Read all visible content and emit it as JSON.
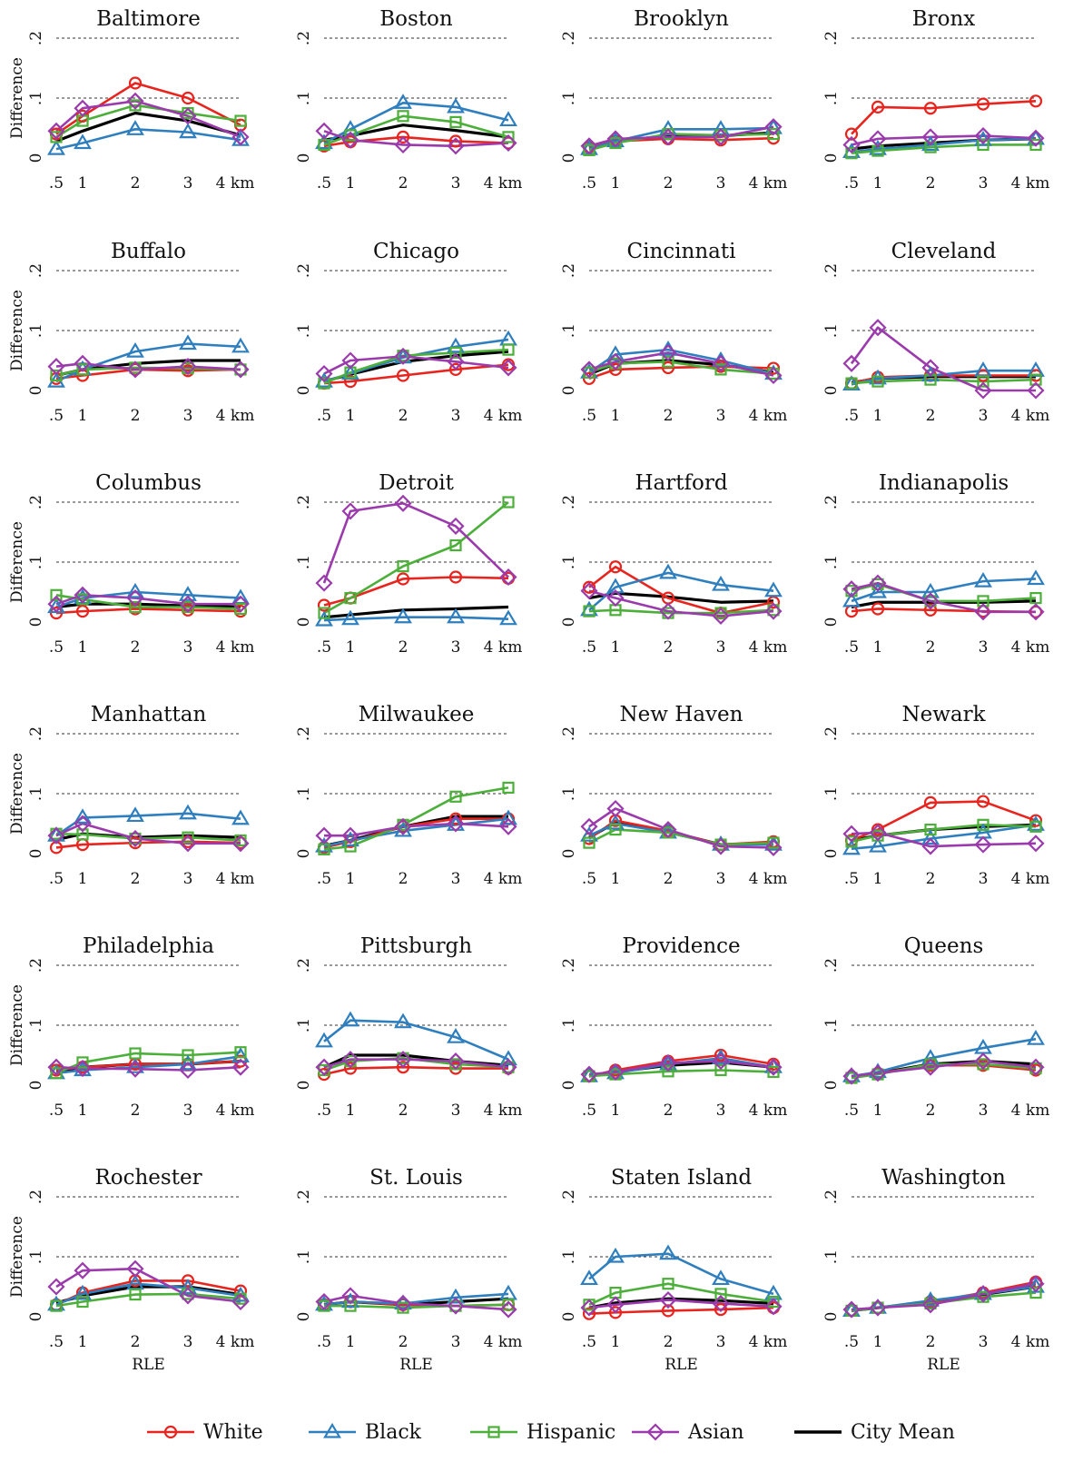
{
  "colors": {
    "White": "#e8241f",
    "Black": "#2f7fbf",
    "Hispanic": "#4caf3a",
    "Asian": "#9b3aac",
    "City Mean": "#000000"
  },
  "legend": [
    {
      "label": "White",
      "marker": "circle"
    },
    {
      "label": "Black",
      "marker": "triangle"
    },
    {
      "label": "Hispanic",
      "marker": "square"
    },
    {
      "label": "Asian",
      "marker": "diamond"
    },
    {
      "label": "City Mean",
      "marker": "none"
    }
  ],
  "chart_data": {
    "type": "line",
    "x": [
      0.5,
      1,
      2,
      3,
      4
    ],
    "x_tick_labels": [
      ".5",
      "1",
      "2",
      "3",
      "4 km"
    ],
    "y_ticks": [
      "0",
      ".1",
      ".2"
    ],
    "ylim": [
      0,
      0.2
    ],
    "xlim": [
      0.5,
      4
    ],
    "ylabel": "Difference",
    "xlabel": "RLE",
    "grid": "dashed horizontal at .1 and .2",
    "series_order": [
      "White",
      "Black",
      "Hispanic",
      "Asian",
      "City Mean"
    ],
    "panels": [
      {
        "title": "Baltimore",
        "series": {
          "White": [
            0.04,
            0.07,
            0.125,
            0.1,
            0.055
          ],
          "Black": [
            0.015,
            0.025,
            0.048,
            0.043,
            0.03
          ],
          "Hispanic": [
            0.035,
            0.062,
            0.088,
            0.075,
            0.062
          ],
          "Asian": [
            0.045,
            0.083,
            0.095,
            0.07,
            0.035
          ],
          "City Mean": [
            0.028,
            0.045,
            0.075,
            0.062,
            0.038
          ]
        }
      },
      {
        "title": "Boston",
        "series": {
          "White": [
            0.02,
            0.027,
            0.035,
            0.028,
            0.025
          ],
          "Black": [
            0.025,
            0.048,
            0.092,
            0.085,
            0.063
          ],
          "Hispanic": [
            0.022,
            0.038,
            0.07,
            0.06,
            0.035
          ],
          "Asian": [
            0.045,
            0.03,
            0.022,
            0.02,
            0.025
          ],
          "City Mean": [
            0.03,
            0.037,
            0.055,
            0.046,
            0.035
          ]
        }
      },
      {
        "title": "Brooklyn",
        "series": {
          "White": [
            0.018,
            0.028,
            0.032,
            0.03,
            0.033
          ],
          "Black": [
            0.015,
            0.028,
            0.048,
            0.048,
            0.05
          ],
          "Hispanic": [
            0.013,
            0.025,
            0.04,
            0.038,
            0.04
          ],
          "Asian": [
            0.02,
            0.032,
            0.035,
            0.035,
            0.052
          ],
          "City Mean": [
            0.017,
            0.028,
            0.037,
            0.037,
            0.042
          ]
        }
      },
      {
        "title": "Bronx",
        "series": {
          "White": [
            0.04,
            0.085,
            0.083,
            0.09,
            0.095
          ],
          "Black": [
            0.01,
            0.015,
            0.022,
            0.03,
            0.032
          ],
          "Hispanic": [
            0.008,
            0.012,
            0.018,
            0.022,
            0.022
          ],
          "Asian": [
            0.022,
            0.032,
            0.035,
            0.037,
            0.033
          ],
          "City Mean": [
            0.015,
            0.02,
            0.025,
            0.03,
            0.032
          ]
        }
      },
      {
        "title": "Buffalo",
        "series": {
          "White": [
            0.02,
            0.025,
            0.035,
            0.033,
            0.035
          ],
          "Black": [
            0.015,
            0.035,
            0.065,
            0.078,
            0.073
          ],
          "Hispanic": [
            0.025,
            0.035,
            0.038,
            0.037,
            0.035
          ],
          "Asian": [
            0.04,
            0.045,
            0.035,
            0.04,
            0.035
          ],
          "City Mean": [
            0.025,
            0.035,
            0.045,
            0.05,
            0.05
          ]
        }
      },
      {
        "title": "Chicago",
        "series": {
          "White": [
            0.012,
            0.015,
            0.025,
            0.035,
            0.043
          ],
          "Black": [
            0.015,
            0.028,
            0.055,
            0.073,
            0.085
          ],
          "Hispanic": [
            0.012,
            0.03,
            0.058,
            0.063,
            0.068
          ],
          "Asian": [
            0.028,
            0.05,
            0.057,
            0.048,
            0.038
          ],
          "City Mean": [
            0.015,
            0.027,
            0.048,
            0.058,
            0.065
          ]
        }
      },
      {
        "title": "Cincinnati",
        "series": {
          "White": [
            0.02,
            0.035,
            0.038,
            0.04,
            0.037
          ],
          "Black": [
            0.03,
            0.06,
            0.068,
            0.05,
            0.028
          ],
          "Hispanic": [
            0.03,
            0.045,
            0.048,
            0.035,
            0.028
          ],
          "Asian": [
            0.035,
            0.048,
            0.063,
            0.045,
            0.025
          ],
          "City Mean": [
            0.027,
            0.045,
            0.05,
            0.043,
            0.03
          ]
        }
      },
      {
        "title": "Cleveland",
        "series": {
          "White": [
            0.012,
            0.022,
            0.025,
            0.025,
            0.025
          ],
          "Black": [
            0.01,
            0.02,
            0.025,
            0.033,
            0.033
          ],
          "Hispanic": [
            0.012,
            0.015,
            0.018,
            0.015,
            0.018
          ],
          "Asian": [
            0.045,
            0.105,
            0.038,
            0.0,
            0.0
          ],
          "City Mean": [
            0.013,
            0.02,
            0.023,
            0.023,
            0.023
          ]
        }
      },
      {
        "title": "Columbus",
        "series": {
          "White": [
            0.015,
            0.018,
            0.022,
            0.02,
            0.018
          ],
          "Black": [
            0.025,
            0.04,
            0.05,
            0.045,
            0.04
          ],
          "Hispanic": [
            0.045,
            0.038,
            0.025,
            0.025,
            0.022
          ],
          "Asian": [
            0.03,
            0.045,
            0.04,
            0.03,
            0.03
          ],
          "City Mean": [
            0.025,
            0.03,
            0.03,
            0.027,
            0.025
          ]
        }
      },
      {
        "title": "Detroit",
        "series": {
          "White": [
            0.028,
            0.04,
            0.072,
            0.075,
            0.073
          ],
          "Black": [
            0.003,
            0.005,
            0.008,
            0.008,
            0.005
          ],
          "Hispanic": [
            0.015,
            0.04,
            0.093,
            0.128,
            0.2
          ],
          "Asian": [
            0.065,
            0.185,
            0.198,
            0.16,
            0.075
          ],
          "City Mean": [
            0.008,
            0.012,
            0.02,
            0.022,
            0.025
          ]
        }
      },
      {
        "title": "Hartford",
        "series": {
          "White": [
            0.058,
            0.092,
            0.04,
            0.015,
            0.033
          ],
          "Black": [
            0.02,
            0.058,
            0.082,
            0.062,
            0.052
          ],
          "Hispanic": [
            0.018,
            0.02,
            0.015,
            0.015,
            0.02
          ],
          "Asian": [
            0.052,
            0.04,
            0.018,
            0.01,
            0.018
          ],
          "City Mean": [
            0.04,
            0.048,
            0.042,
            0.033,
            0.035
          ]
        }
      },
      {
        "title": "Indianapolis",
        "series": {
          "White": [
            0.018,
            0.022,
            0.02,
            0.018,
            0.017
          ],
          "Black": [
            0.035,
            0.05,
            0.05,
            0.068,
            0.072
          ],
          "Hispanic": [
            0.052,
            0.063,
            0.035,
            0.035,
            0.04
          ],
          "Asian": [
            0.055,
            0.065,
            0.035,
            0.017,
            0.017
          ],
          "City Mean": [
            0.025,
            0.033,
            0.033,
            0.033,
            0.035
          ]
        }
      },
      {
        "title": "Manhattan",
        "series": {
          "White": [
            0.01,
            0.015,
            0.018,
            0.02,
            0.018
          ],
          "Black": [
            0.03,
            0.06,
            0.063,
            0.067,
            0.058
          ],
          "Hispanic": [
            0.033,
            0.032,
            0.025,
            0.027,
            0.022
          ],
          "Asian": [
            0.03,
            0.05,
            0.025,
            0.017,
            0.017
          ],
          "City Mean": [
            0.023,
            0.033,
            0.027,
            0.03,
            0.027
          ]
        }
      },
      {
        "title": "Milwaukee",
        "series": {
          "White": [
            0.01,
            0.02,
            0.045,
            0.058,
            0.058
          ],
          "Black": [
            0.012,
            0.022,
            0.038,
            0.048,
            0.058
          ],
          "Hispanic": [
            0.007,
            0.012,
            0.048,
            0.095,
            0.11
          ],
          "Asian": [
            0.03,
            0.03,
            0.045,
            0.05,
            0.045
          ],
          "City Mean": [
            0.013,
            0.022,
            0.045,
            0.062,
            0.062
          ]
        }
      },
      {
        "title": "New Haven",
        "series": {
          "White": [
            0.025,
            0.055,
            0.038,
            0.015,
            0.02
          ],
          "Black": [
            0.03,
            0.05,
            0.035,
            0.015,
            0.015
          ],
          "Hispanic": [
            0.018,
            0.04,
            0.035,
            0.015,
            0.018
          ],
          "Asian": [
            0.045,
            0.075,
            0.04,
            0.012,
            0.01
          ],
          "City Mean": [
            0.027,
            0.052,
            0.037,
            0.015,
            0.017
          ]
        }
      },
      {
        "title": "Newark",
        "series": {
          "White": [
            0.022,
            0.04,
            0.085,
            0.087,
            0.055
          ],
          "Black": [
            0.008,
            0.012,
            0.025,
            0.035,
            0.048
          ],
          "Hispanic": [
            0.02,
            0.03,
            0.04,
            0.048,
            0.045
          ],
          "Asian": [
            0.033,
            0.035,
            0.012,
            0.015,
            0.017
          ],
          "City Mean": [
            0.022,
            0.03,
            0.04,
            0.045,
            0.048
          ]
        }
      },
      {
        "title": "Philadelphia",
        "series": {
          "White": [
            0.025,
            0.03,
            0.035,
            0.035,
            0.04
          ],
          "Black": [
            0.02,
            0.025,
            0.03,
            0.035,
            0.048
          ],
          "Hispanic": [
            0.02,
            0.038,
            0.053,
            0.05,
            0.055
          ],
          "Asian": [
            0.03,
            0.028,
            0.027,
            0.025,
            0.03
          ],
          "City Mean": [
            0.023,
            0.03,
            0.035,
            0.035,
            0.04
          ]
        }
      },
      {
        "title": "Pittsburgh",
        "series": {
          "White": [
            0.018,
            0.028,
            0.03,
            0.028,
            0.028
          ],
          "Black": [
            0.073,
            0.108,
            0.105,
            0.08,
            0.043
          ],
          "Hispanic": [
            0.025,
            0.04,
            0.045,
            0.035,
            0.03
          ],
          "Asian": [
            0.03,
            0.043,
            0.043,
            0.04,
            0.03
          ],
          "City Mean": [
            0.03,
            0.05,
            0.05,
            0.04,
            0.033
          ]
        }
      },
      {
        "title": "Providence",
        "series": {
          "White": [
            0.015,
            0.025,
            0.04,
            0.05,
            0.035
          ],
          "Black": [
            0.015,
            0.02,
            0.035,
            0.045,
            0.03
          ],
          "Hispanic": [
            0.015,
            0.018,
            0.023,
            0.025,
            0.022
          ],
          "Asian": [
            0.018,
            0.022,
            0.037,
            0.04,
            0.03
          ],
          "City Mean": [
            0.015,
            0.022,
            0.033,
            0.038,
            0.03
          ]
        }
      },
      {
        "title": "Queens",
        "series": {
          "White": [
            0.013,
            0.02,
            0.033,
            0.033,
            0.025
          ],
          "Black": [
            0.015,
            0.022,
            0.045,
            0.062,
            0.077
          ],
          "Hispanic": [
            0.012,
            0.018,
            0.035,
            0.035,
            0.028
          ],
          "Asian": [
            0.015,
            0.02,
            0.03,
            0.04,
            0.03
          ],
          "City Mean": [
            0.014,
            0.02,
            0.035,
            0.04,
            0.035
          ]
        }
      },
      {
        "title": "Rochester",
        "series": {
          "White": [
            0.02,
            0.04,
            0.06,
            0.06,
            0.043
          ],
          "Black": [
            0.02,
            0.038,
            0.055,
            0.048,
            0.035
          ],
          "Hispanic": [
            0.018,
            0.025,
            0.037,
            0.038,
            0.03
          ],
          "Asian": [
            0.05,
            0.077,
            0.08,
            0.035,
            0.025
          ],
          "City Mean": [
            0.023,
            0.035,
            0.05,
            0.05,
            0.037
          ]
        }
      },
      {
        "title": "St. Louis",
        "series": {
          "White": [
            0.02,
            0.025,
            0.02,
            0.018,
            0.02
          ],
          "Black": [
            0.02,
            0.025,
            0.022,
            0.032,
            0.038
          ],
          "Hispanic": [
            0.018,
            0.018,
            0.015,
            0.018,
            0.02
          ],
          "Asian": [
            0.025,
            0.035,
            0.022,
            0.018,
            0.012
          ],
          "City Mean": [
            0.02,
            0.025,
            0.02,
            0.025,
            0.03
          ]
        }
      },
      {
        "title": "Staten Island",
        "series": {
          "White": [
            0.005,
            0.007,
            0.01,
            0.012,
            0.015
          ],
          "Black": [
            0.063,
            0.1,
            0.105,
            0.063,
            0.038
          ],
          "Hispanic": [
            0.02,
            0.04,
            0.055,
            0.038,
            0.025
          ],
          "Asian": [
            0.015,
            0.02,
            0.028,
            0.022,
            0.017
          ],
          "City Mean": [
            0.015,
            0.023,
            0.03,
            0.027,
            0.022
          ]
        }
      },
      {
        "title": "Washington",
        "series": {
          "White": [
            0.01,
            0.015,
            0.025,
            0.04,
            0.058
          ],
          "Black": [
            0.01,
            0.015,
            0.027,
            0.038,
            0.05
          ],
          "Hispanic": [
            0.01,
            0.015,
            0.022,
            0.033,
            0.04
          ],
          "Asian": [
            0.012,
            0.015,
            0.02,
            0.038,
            0.055
          ],
          "City Mean": [
            0.01,
            0.015,
            0.024,
            0.037,
            0.05
          ]
        }
      }
    ]
  }
}
